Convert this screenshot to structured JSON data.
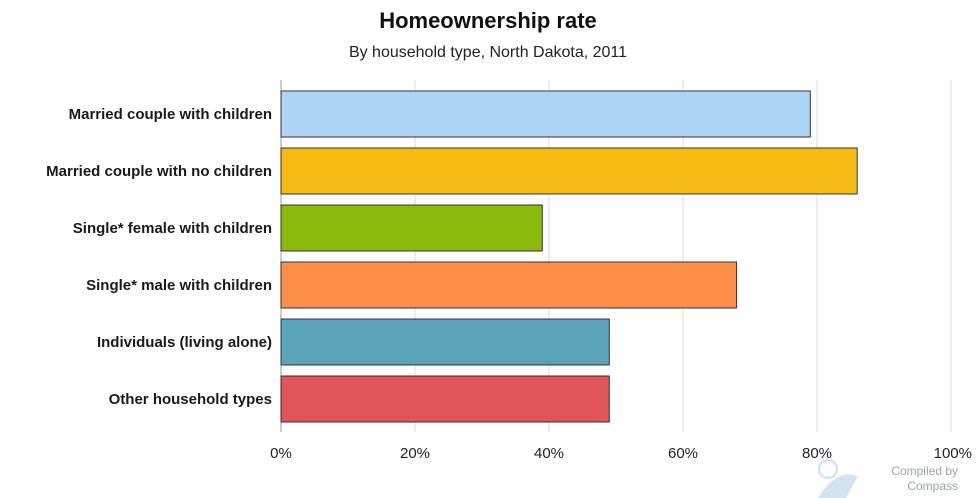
{
  "chart_data": {
    "type": "bar",
    "orientation": "horizontal",
    "title": "Homeownership rate",
    "subtitle": "By household type, North Dakota, 2011",
    "categories": [
      "Married couple with children",
      "Married couple with no children",
      "Single* female with children",
      "Single* male with children",
      "Individuals (living alone)",
      "Other household types"
    ],
    "values": [
      79,
      86,
      39,
      68,
      49,
      49
    ],
    "colors": [
      "#aed4f5",
      "#f5bb13",
      "#8aba0e",
      "#fc8f49",
      "#58a3ba",
      "#e0565a"
    ],
    "xlim": [
      0,
      100
    ],
    "ticks": [
      "0%",
      "20%",
      "40%",
      "60%",
      "80%",
      "100%"
    ],
    "tick_values": [
      0,
      20,
      40,
      60,
      80,
      100
    ],
    "grid": true,
    "xlabel": "",
    "ylabel": ""
  },
  "credit": {
    "line1": "Compiled by",
    "line2": "Compass",
    "logo_icon": "compass-logo-icon"
  }
}
